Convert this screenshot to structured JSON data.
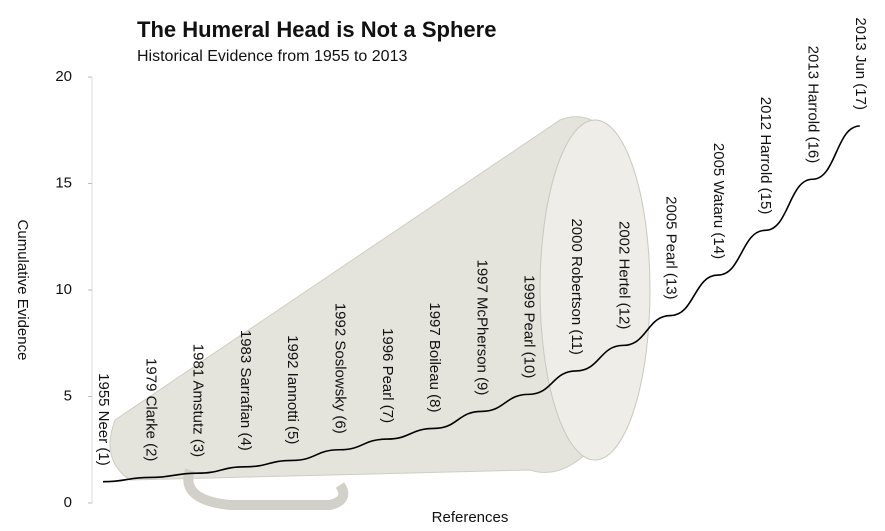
{
  "chart_data": {
    "type": "line",
    "title": "The Humeral Head is Not a Sphere",
    "subtitle": "Historical Evidence from 1955 to 2013",
    "x_label": "References",
    "y_label": "Cumulative Evidence",
    "categories": [
      "1955 Neer (1)",
      "1979 Clarke (2)",
      "1981 Amstutz (3)",
      "1983 Sarrafian (4)",
      "1992 Iannotti (5)",
      "1992 Soslowsky (6)",
      "1996 Pearl (7)",
      "1997 Boileau (8)",
      "1997 McPherson (9)",
      "1999 Pearl (10)",
      "2000 Robertson (11)",
      "2002 Hertel (12)",
      "2005 Pearl (13)",
      "2005 Wataru (14)",
      "2012 Harrold (15)",
      "2013 Harrold (16)",
      "2013 Jun (17)"
    ],
    "values": [
      1.0,
      1.2,
      1.4,
      1.7,
      2.0,
      2.5,
      3.0,
      3.5,
      4.3,
      5.1,
      6.2,
      7.4,
      8.8,
      10.7,
      12.8,
      15.2,
      17.7
    ],
    "color": "#000000",
    "ylim": [
      0,
      20
    ],
    "yticks": [
      0,
      5,
      10,
      15,
      20
    ]
  }
}
